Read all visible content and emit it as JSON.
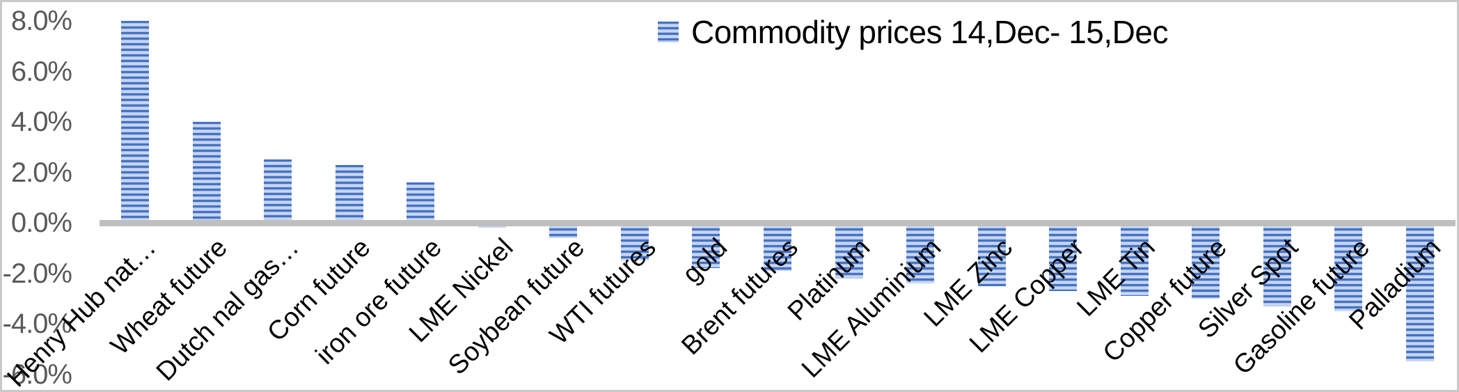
{
  "legend": {
    "label": "Commodity prices 14,Dec- 15,Dec",
    "marker_icon": "striped-blue-square"
  },
  "colors": {
    "bar_stripe_dark": "#4472c4",
    "bar_stripe_light": "#cdd9f1",
    "axis_line": "#bfbfbf",
    "tick_text": "#595959",
    "category_text": "#000000",
    "frame_border": "#c9c9c9",
    "background": "#ffffff"
  },
  "chart_data": {
    "type": "bar",
    "title": "Commodity prices 14,Dec- 15,Dec",
    "xlabel": "",
    "ylabel": "",
    "value_unit": "%",
    "categories": [
      "Henry Hub nat…",
      "Wheat future",
      "Dutch nal gas…",
      "Corn future",
      "iron ore future",
      "LME Nickel",
      "Soybean future",
      "WTI futures",
      "gold",
      "Brent futures",
      "Platinum",
      "LME Aluminium",
      "LME Zinc",
      "LME Copper",
      "LME Tin",
      "Copper future",
      "Silver Spot",
      "Gasoline future",
      "Palladium"
    ],
    "values": [
      8.0,
      4.0,
      2.5,
      2.3,
      1.6,
      -0.2,
      -0.6,
      -1.5,
      -1.8,
      -1.9,
      -2.2,
      -2.4,
      -2.5,
      -2.7,
      -2.9,
      -3.0,
      -3.3,
      -3.5,
      -5.5
    ],
    "y_ticks": [
      8.0,
      6.0,
      4.0,
      2.0,
      0.0,
      -2.0,
      -4.0,
      -6.0
    ],
    "y_tick_labels": [
      "8.0%",
      "6.0%",
      "4.0%",
      "2.0%",
      "0.0%",
      "-2.0%",
      "-4.0%",
      "-6.0%"
    ],
    "ylim": [
      -6.0,
      8.0
    ],
    "grid": false,
    "legend_position": "top-center",
    "bar_pattern": "horizontal-stripes",
    "category_label_rotation_deg": 45
  }
}
